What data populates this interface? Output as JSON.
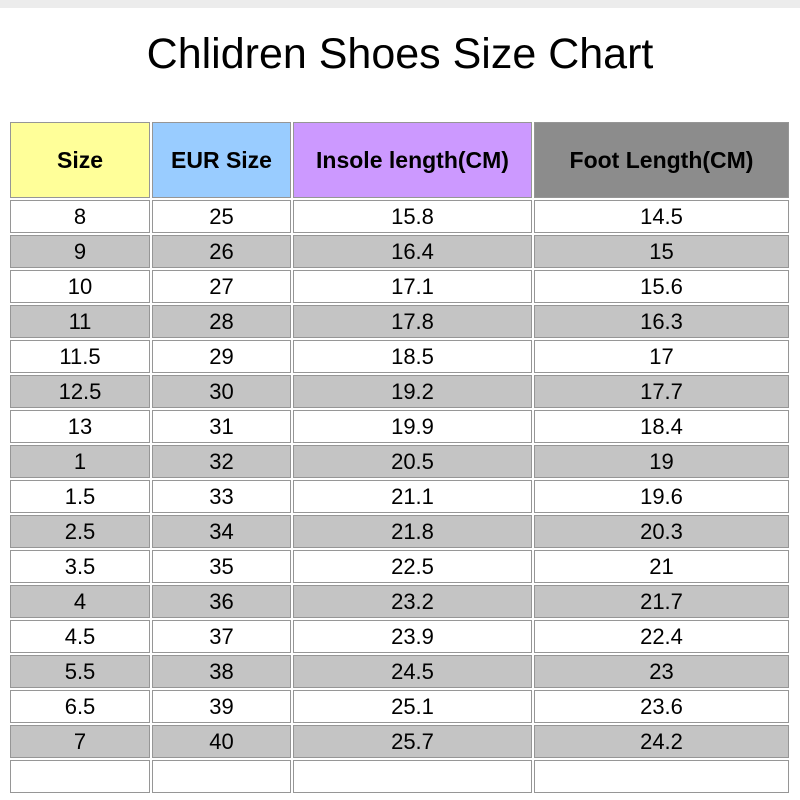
{
  "title": "Chlidren Shoes Size Chart",
  "colors": {
    "top_bar": "#ECECEC",
    "page_background": "#FFFFFF",
    "text": "#000000",
    "grid_border": "#969696",
    "alt_row_bg": "#C4C4C4"
  },
  "table": {
    "headers": [
      {
        "label": "Size",
        "bg": "#FFFF99"
      },
      {
        "label": "EUR Size",
        "bg": "#99CCFF"
      },
      {
        "label": "Insole length(CM)",
        "bg": "#CC99FF"
      },
      {
        "label": "Foot Length(CM)",
        "bg": "#8C8C8C"
      }
    ],
    "has_empty_trailing_row": true
  },
  "chart_data": {
    "type": "table",
    "title": "Chlidren Shoes Size Chart",
    "columns": [
      "Size",
      "EUR Size",
      "Insole length(CM)",
      "Foot Length(CM)"
    ],
    "rows": [
      [
        "8",
        "25",
        "15.8",
        "14.5"
      ],
      [
        "9",
        "26",
        "16.4",
        "15"
      ],
      [
        "10",
        "27",
        "17.1",
        "15.6"
      ],
      [
        "11",
        "28",
        "17.8",
        "16.3"
      ],
      [
        "11.5",
        "29",
        "18.5",
        "17"
      ],
      [
        "12.5",
        "30",
        "19.2",
        "17.7"
      ],
      [
        "13",
        "31",
        "19.9",
        "18.4"
      ],
      [
        "1",
        "32",
        "20.5",
        "19"
      ],
      [
        "1.5",
        "33",
        "21.1",
        "19.6"
      ],
      [
        "2.5",
        "34",
        "21.8",
        "20.3"
      ],
      [
        "3.5",
        "35",
        "22.5",
        "21"
      ],
      [
        "4",
        "36",
        "23.2",
        "21.7"
      ],
      [
        "4.5",
        "37",
        "23.9",
        "22.4"
      ],
      [
        "5.5",
        "38",
        "24.5",
        "23"
      ],
      [
        "6.5",
        "39",
        "25.1",
        "23.6"
      ],
      [
        "7",
        "40",
        "25.7",
        "24.2"
      ]
    ],
    "layout": {
      "striped": true,
      "stripe_color": "#C4C4C4",
      "header_colors": [
        "#FFFF99",
        "#99CCFF",
        "#CC99FF",
        "#8C8C8C"
      ],
      "grid": true
    }
  }
}
